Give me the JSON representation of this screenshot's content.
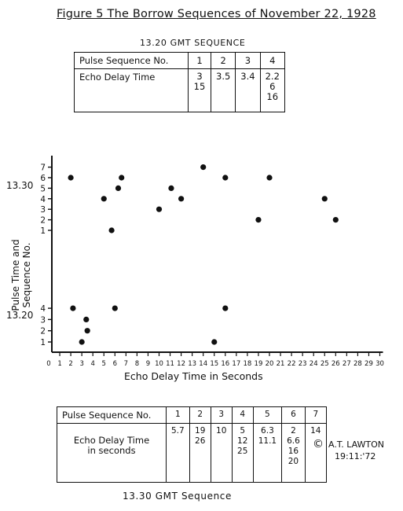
{
  "figure_title": "Figure 5   The Borrow Sequences of November 22, 1928",
  "top_table": {
    "caption": "13.20 GMT SEQUENCE",
    "header_label": "Pulse Sequence No.",
    "row_label": "Echo Delay Time",
    "columns": [
      {
        "seq": "1",
        "delays": [
          "3",
          "15"
        ]
      },
      {
        "seq": "2",
        "delays": [
          "3.5"
        ]
      },
      {
        "seq": "3",
        "delays": [
          "3.4"
        ]
      },
      {
        "seq": "4",
        "delays": [
          "2.2",
          "6",
          "16"
        ]
      }
    ]
  },
  "bottom_table": {
    "caption": "13.30 GMT Sequence",
    "header_label": "Pulse Sequence No.",
    "row_label_line1": "Echo Delay Time",
    "row_label_line2": "in seconds",
    "columns": [
      {
        "seq": "1",
        "delays": [
          "5.7"
        ]
      },
      {
        "seq": "2",
        "delays": [
          "19",
          "26"
        ]
      },
      {
        "seq": "3",
        "delays": [
          "10"
        ]
      },
      {
        "seq": "4",
        "delays": [
          "5",
          "12",
          "25"
        ]
      },
      {
        "seq": "5",
        "delays": [
          "6.3",
          "11.1"
        ]
      },
      {
        "seq": "6",
        "delays": [
          "2",
          "6.6",
          "16",
          "20"
        ]
      },
      {
        "seq": "7",
        "delays": [
          "14"
        ]
      }
    ]
  },
  "credit": {
    "symbol": "©",
    "name": "A.T. LAWTON",
    "date": "19:11:'72"
  },
  "chart_data": {
    "type": "scatter",
    "xlabel": "Echo Delay Time in Seconds",
    "ylabel_line1": "Pulse Time and",
    "ylabel_line2": "Sequence No.",
    "xlim": [
      0,
      30
    ],
    "x_ticks": [
      "0",
      "1",
      "2",
      "3",
      "4",
      "5",
      "6",
      "7",
      "8",
      "9",
      "10",
      "11",
      "12",
      "13",
      "14",
      "15",
      "16",
      "17",
      "18",
      "19",
      "20",
      "21",
      "22",
      "23",
      "24",
      "25",
      "26",
      "27",
      "28",
      "29",
      "30"
    ],
    "groups": [
      {
        "name": "13.30",
        "y_ticks": [
          "1",
          "2",
          "3",
          "4",
          "5",
          "6",
          "7"
        ],
        "ylim": [
          1,
          7
        ]
      },
      {
        "name": "13.20",
        "y_ticks": [
          "1",
          "2",
          "3",
          "4"
        ],
        "ylim": [
          1,
          4
        ]
      }
    ],
    "points": [
      {
        "group": "13.20",
        "x": 3,
        "y": 1
      },
      {
        "group": "13.20",
        "x": 15,
        "y": 1
      },
      {
        "group": "13.20",
        "x": 3.5,
        "y": 2
      },
      {
        "group": "13.20",
        "x": 3.4,
        "y": 3
      },
      {
        "group": "13.20",
        "x": 2.2,
        "y": 4
      },
      {
        "group": "13.20",
        "x": 6,
        "y": 4
      },
      {
        "group": "13.20",
        "x": 16,
        "y": 4
      },
      {
        "group": "13.30",
        "x": 5.7,
        "y": 1
      },
      {
        "group": "13.30",
        "x": 19,
        "y": 2
      },
      {
        "group": "13.30",
        "x": 26,
        "y": 2
      },
      {
        "group": "13.30",
        "x": 10,
        "y": 3
      },
      {
        "group": "13.30",
        "x": 5,
        "y": 4
      },
      {
        "group": "13.30",
        "x": 12,
        "y": 4
      },
      {
        "group": "13.30",
        "x": 25,
        "y": 4
      },
      {
        "group": "13.30",
        "x": 6.3,
        "y": 5
      },
      {
        "group": "13.30",
        "x": 11.1,
        "y": 5
      },
      {
        "group": "13.30",
        "x": 2,
        "y": 6
      },
      {
        "group": "13.30",
        "x": 6.6,
        "y": 6
      },
      {
        "group": "13.30",
        "x": 16,
        "y": 6
      },
      {
        "group": "13.30",
        "x": 20,
        "y": 6
      },
      {
        "group": "13.30",
        "x": 14,
        "y": 7
      }
    ]
  }
}
